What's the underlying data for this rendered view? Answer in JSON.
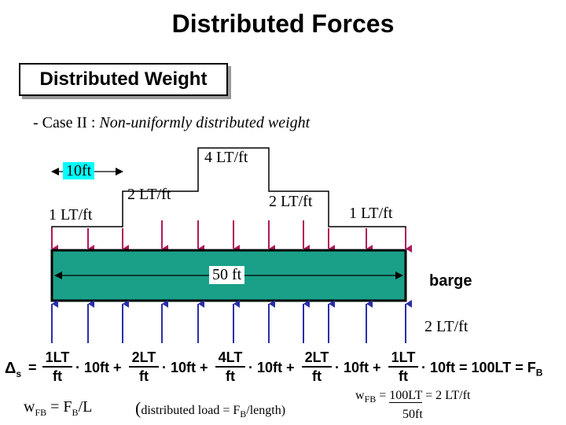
{
  "title": "Distributed Forces",
  "subtitle": "Distributed Weight",
  "case_prefix": "- Case II : ",
  "case_text": "Non-uniformly distributed weight",
  "diagram": {
    "span_label": "10ft",
    "load_left": "1 LT/ft",
    "load_2a": "2 LT/ft",
    "load_top": "4 LT/ft",
    "load_2b": "2 LT/ft",
    "load_right": "1 LT/ft",
    "length_label": "50 ft",
    "barge_label": "barge",
    "buoyancy_label": "2 LT/ft"
  },
  "colors": {
    "barge_fill": "#1aa088",
    "load_arrow": "#b0185a",
    "buoyancy_arrow": "#2a2fa8",
    "span_highlight": "#00ffff"
  },
  "equation": {
    "lhs": "Δ",
    "lhs_sub": "s",
    "eq": "=",
    "t1_num": "1LT",
    "t1_den": "ft",
    "t1_mul": "· 10ft +",
    "t2_num": "2LT",
    "t2_den": "ft",
    "t2_mul": "· 10ft +",
    "t3_num": "4LT",
    "t3_den": "ft",
    "t3_mul": "· 10ft +",
    "t4_num": "2LT",
    "t4_den": "ft",
    "t4_mul": "· 10ft +",
    "t5_num": "1LT",
    "t5_den": "ft",
    "t5_mul": "· 10ft = 100LT = F",
    "rhs_sub": "B"
  },
  "bottom": {
    "w_main": "w",
    "w_sub": "FB",
    "w_eq": " = F",
    "w_f_sub": "B",
    "w_tail": "/L",
    "note_prefix": "(",
    "note_text": "distributed load = F",
    "note_sub": "B",
    "note_tail": "/length)",
    "r_w": "w",
    "r_w_sub": "FB",
    "r_eq": " = ",
    "r_num": "100LT",
    "r_after": " = 2 LT/ft",
    "r_den": "50ft"
  }
}
